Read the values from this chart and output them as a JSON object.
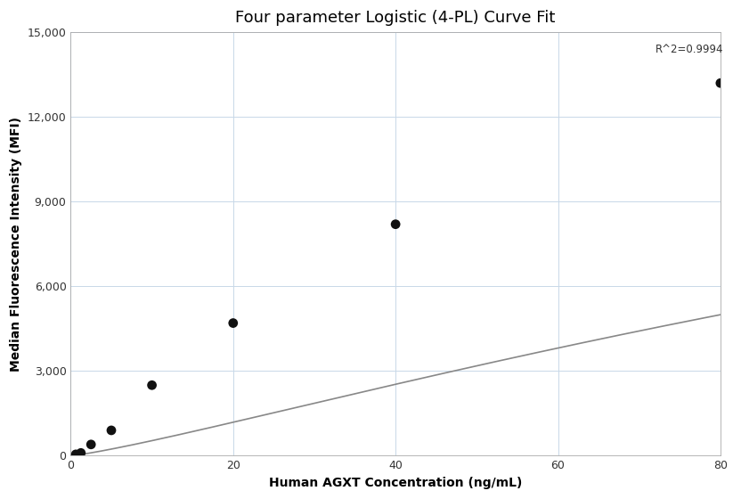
{
  "title": "Four parameter Logistic (4-PL) Curve Fit",
  "xlabel": "Human AGXT Concentration (ng/mL)",
  "ylabel": "Median Fluorescence Intensity (MFI)",
  "x_data": [
    0.625,
    1.25,
    2.5,
    5,
    10,
    20,
    40,
    80
  ],
  "y_data": [
    50,
    100,
    400,
    900,
    2500,
    4700,
    8200,
    13200
  ],
  "r_squared": "R^2=0.9994",
  "xlim": [
    0,
    80
  ],
  "ylim": [
    0,
    15000
  ],
  "xticks": [
    0,
    20,
    40,
    60,
    80
  ],
  "yticks": [
    0,
    3000,
    6000,
    9000,
    12000,
    15000
  ],
  "dot_color": "#111111",
  "dot_size": 60,
  "line_color": "#888888",
  "line_width": 1.2,
  "bg_color": "#ffffff",
  "grid_color": "#c8d8e8",
  "title_fontsize": 13,
  "label_fontsize": 10,
  "tick_fontsize": 9,
  "annotation_fontsize": 8.5,
  "font_family": "DejaVu Sans"
}
